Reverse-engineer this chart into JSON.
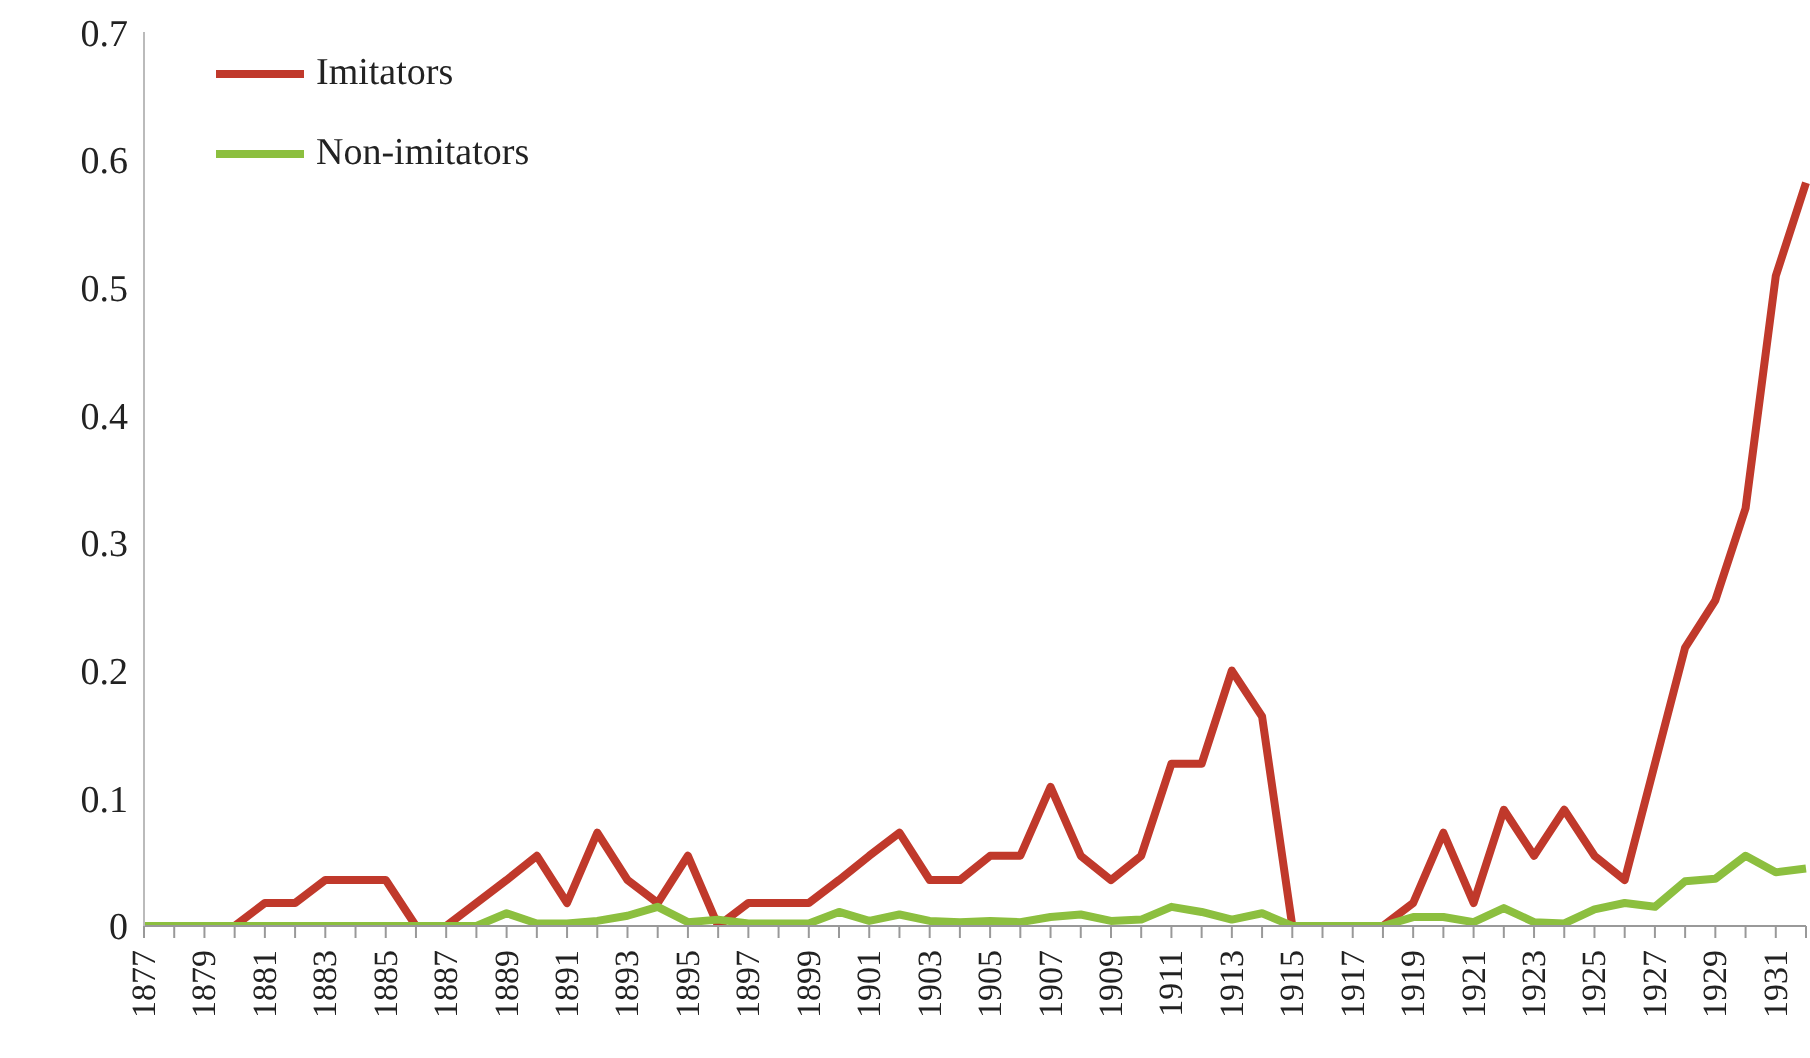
{
  "chart_data": {
    "type": "line",
    "categories": [
      "1877",
      null,
      "1879",
      null,
      "1881",
      null,
      "1883",
      null,
      "1885",
      null,
      "1887",
      null,
      "1889",
      null,
      "1891",
      null,
      "1893",
      null,
      "1895",
      null,
      "1897",
      null,
      "1899",
      null,
      "1901",
      null,
      "1903",
      null,
      "1905",
      null,
      "1907",
      null,
      "1909",
      null,
      "1911",
      null,
      "1913",
      null,
      "1915",
      null,
      "1917",
      null,
      "1919",
      null,
      "1921",
      null,
      "1923",
      null,
      "1925",
      null,
      "1927",
      null,
      "1929",
      null,
      "1931",
      null
    ],
    "series": [
      {
        "name": "Imitators",
        "color": "#c0392b",
        "values": [
          null,
          null,
          0,
          0,
          0.018,
          0.018,
          0.036,
          0.036,
          0.036,
          0,
          0,
          0.018,
          0.036,
          0.055,
          0.018,
          0.073,
          0.036,
          0.018,
          0.055,
          0,
          0.018,
          0.018,
          0.018,
          0.036,
          0.055,
          0.073,
          0.036,
          0.036,
          0.055,
          0.055,
          0.109,
          0.055,
          0.036,
          0.055,
          0.127,
          0.127,
          0.2,
          0.164,
          0,
          0,
          0,
          0,
          0.018,
          0.073,
          0.018,
          0.091,
          0.055,
          0.091,
          0.055,
          0.036,
          0.127,
          0.218,
          0.255,
          0.327,
          0.509,
          0.582
        ]
      },
      {
        "name": "Non-imitators",
        "color": "#8cbf3f",
        "values": [
          0,
          0,
          0,
          0,
          0,
          0,
          0,
          0,
          0,
          0,
          0,
          0,
          0.01,
          0.002,
          0.002,
          0.004,
          0.008,
          0.015,
          0.003,
          0.005,
          0.002,
          0.002,
          0.002,
          0.011,
          0.004,
          0.009,
          0.004,
          0.003,
          0.004,
          0.003,
          0.007,
          0.009,
          0.004,
          0.005,
          0.015,
          0.011,
          0.005,
          0.01,
          0,
          0,
          0,
          0,
          0.007,
          0.007,
          0.003,
          0.014,
          0.003,
          0.002,
          0.013,
          0.018,
          0.015,
          0.035,
          0.037,
          0.055,
          0.042,
          0.045
        ]
      }
    ],
    "ylim": [
      0,
      0.7
    ],
    "yticks": [
      0,
      0.1,
      0.2,
      0.3,
      0.4,
      0.5,
      0.6,
      0.7
    ],
    "legend": "top left",
    "marker": "none",
    "line_style": "solid",
    "grid": false
  }
}
